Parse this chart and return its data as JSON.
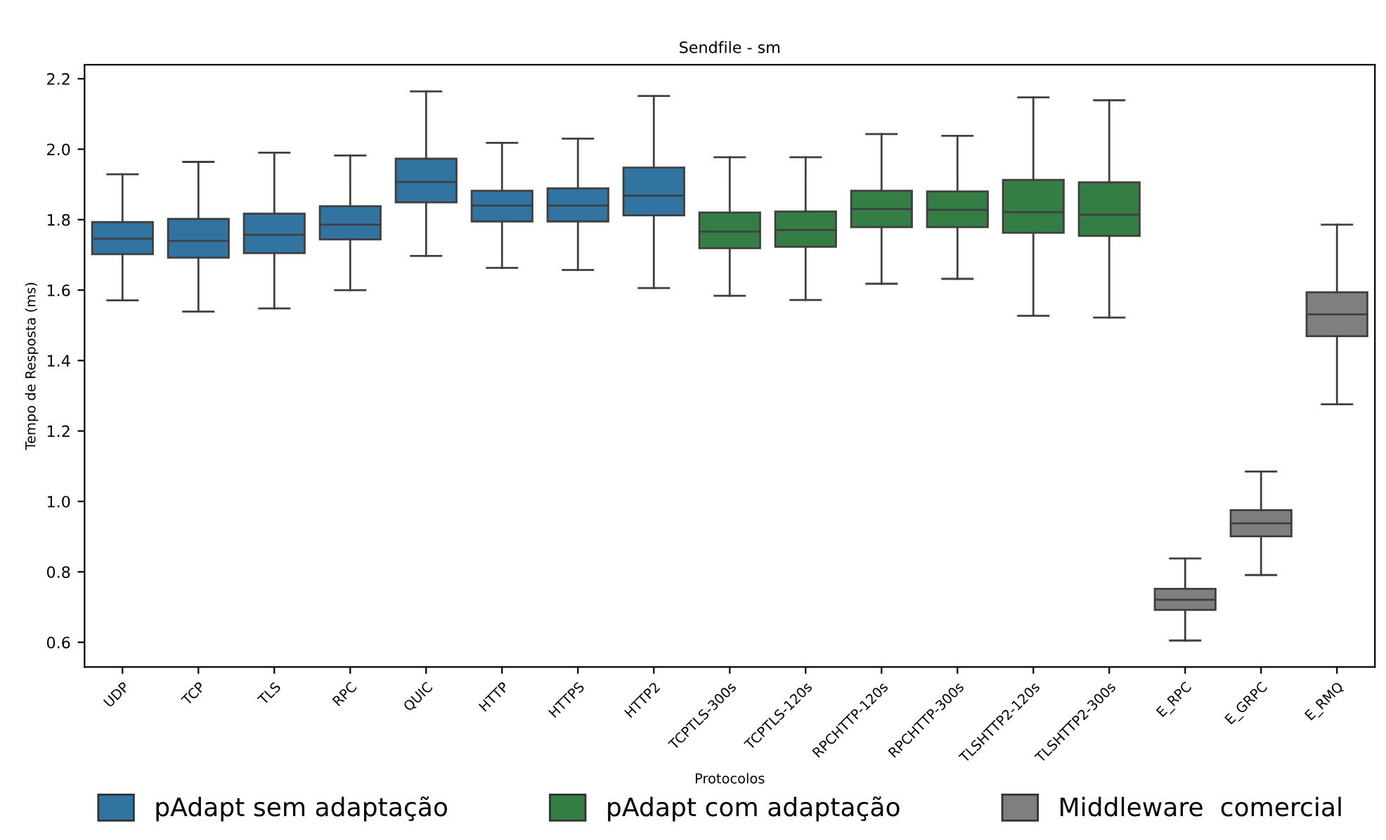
{
  "chart_data": {
    "type": "box",
    "title": "Sendfile - sm",
    "xlabel": "Protocolos",
    "ylabel": "Tempo de Resposta (ms)",
    "categories": [
      "UDP",
      "TCP",
      "TLS",
      "RPC",
      "QUIC",
      "HTTP",
      "HTTPS",
      "HTTP2",
      "TCPTLS-300s",
      "TCPTLS-120s",
      "RPCHTTP-120s",
      "RPCHTTP-300s",
      "TLSHTTP2-120s",
      "TLSHTTP2-300s",
      "E_RPC",
      "E_GRPC",
      "E_RMQ"
    ],
    "ylim": [
      0.53,
      2.24
    ],
    "yticks": [
      0.6,
      0.8,
      {
        "value": 1,
        "label": "1.0"
      },
      1.2,
      1.4,
      1.6,
      1.8,
      {
        "value": 2,
        "label": "2.0"
      },
      2.2
    ],
    "grid": false,
    "legend": "bottom",
    "series": [
      {
        "name": "pAdapt sem adaptação",
        "color": "#3274a1",
        "boxes": [
          {
            "low": 1.571,
            "q1": 1.702,
            "median": 1.746,
            "q3": 1.793,
            "high": 1.929
          },
          {
            "low": 1.539,
            "q1": 1.692,
            "median": 1.74,
            "q3": 1.802,
            "high": 1.964
          },
          {
            "low": 1.548,
            "q1": 1.705,
            "median": 1.757,
            "q3": 1.817,
            "high": 1.99
          },
          {
            "low": 1.6,
            "q1": 1.744,
            "median": 1.786,
            "q3": 1.838,
            "high": 1.982
          },
          {
            "low": 1.697,
            "q1": 1.849,
            "median": 1.907,
            "q3": 1.973,
            "high": 2.164
          },
          {
            "low": 1.663,
            "q1": 1.795,
            "median": 1.84,
            "q3": 1.882,
            "high": 2.018
          },
          {
            "low": 1.657,
            "q1": 1.795,
            "median": 1.84,
            "q3": 1.889,
            "high": 2.03
          },
          {
            "low": 1.606,
            "q1": 1.812,
            "median": 1.868,
            "q3": 1.948,
            "high": 2.151
          },
          null,
          null,
          null,
          null,
          null,
          null,
          null,
          null,
          null
        ]
      },
      {
        "name": "pAdapt com adaptação",
        "color": "#347d45",
        "boxes": [
          null,
          null,
          null,
          null,
          null,
          null,
          null,
          null,
          {
            "low": 1.584,
            "q1": 1.719,
            "median": 1.766,
            "q3": 1.82,
            "high": 1.977
          },
          {
            "low": 1.572,
            "q1": 1.723,
            "median": 1.771,
            "q3": 1.823,
            "high": 1.977
          },
          {
            "low": 1.618,
            "q1": 1.779,
            "median": 1.83,
            "q3": 1.882,
            "high": 2.043
          },
          {
            "low": 1.632,
            "q1": 1.779,
            "median": 1.828,
            "q3": 1.88,
            "high": 2.038
          },
          {
            "low": 1.527,
            "q1": 1.763,
            "median": 1.821,
            "q3": 1.913,
            "high": 2.147
          },
          {
            "low": 1.522,
            "q1": 1.754,
            "median": 1.814,
            "q3": 1.906,
            "high": 2.139
          },
          null,
          null,
          null
        ]
      },
      {
        "name": "Middleware  comercial",
        "color": "#7f7f7f",
        "boxes": [
          null,
          null,
          null,
          null,
          null,
          null,
          null,
          null,
          null,
          null,
          null,
          null,
          null,
          null,
          {
            "low": 0.605,
            "q1": 0.692,
            "median": 0.721,
            "q3": 0.752,
            "high": 0.838
          },
          {
            "low": 0.791,
            "q1": 0.901,
            "median": 0.938,
            "q3": 0.975,
            "high": 1.085
          },
          {
            "low": 1.276,
            "q1": 1.469,
            "median": 1.531,
            "q3": 1.594,
            "high": 1.786
          }
        ]
      }
    ]
  }
}
